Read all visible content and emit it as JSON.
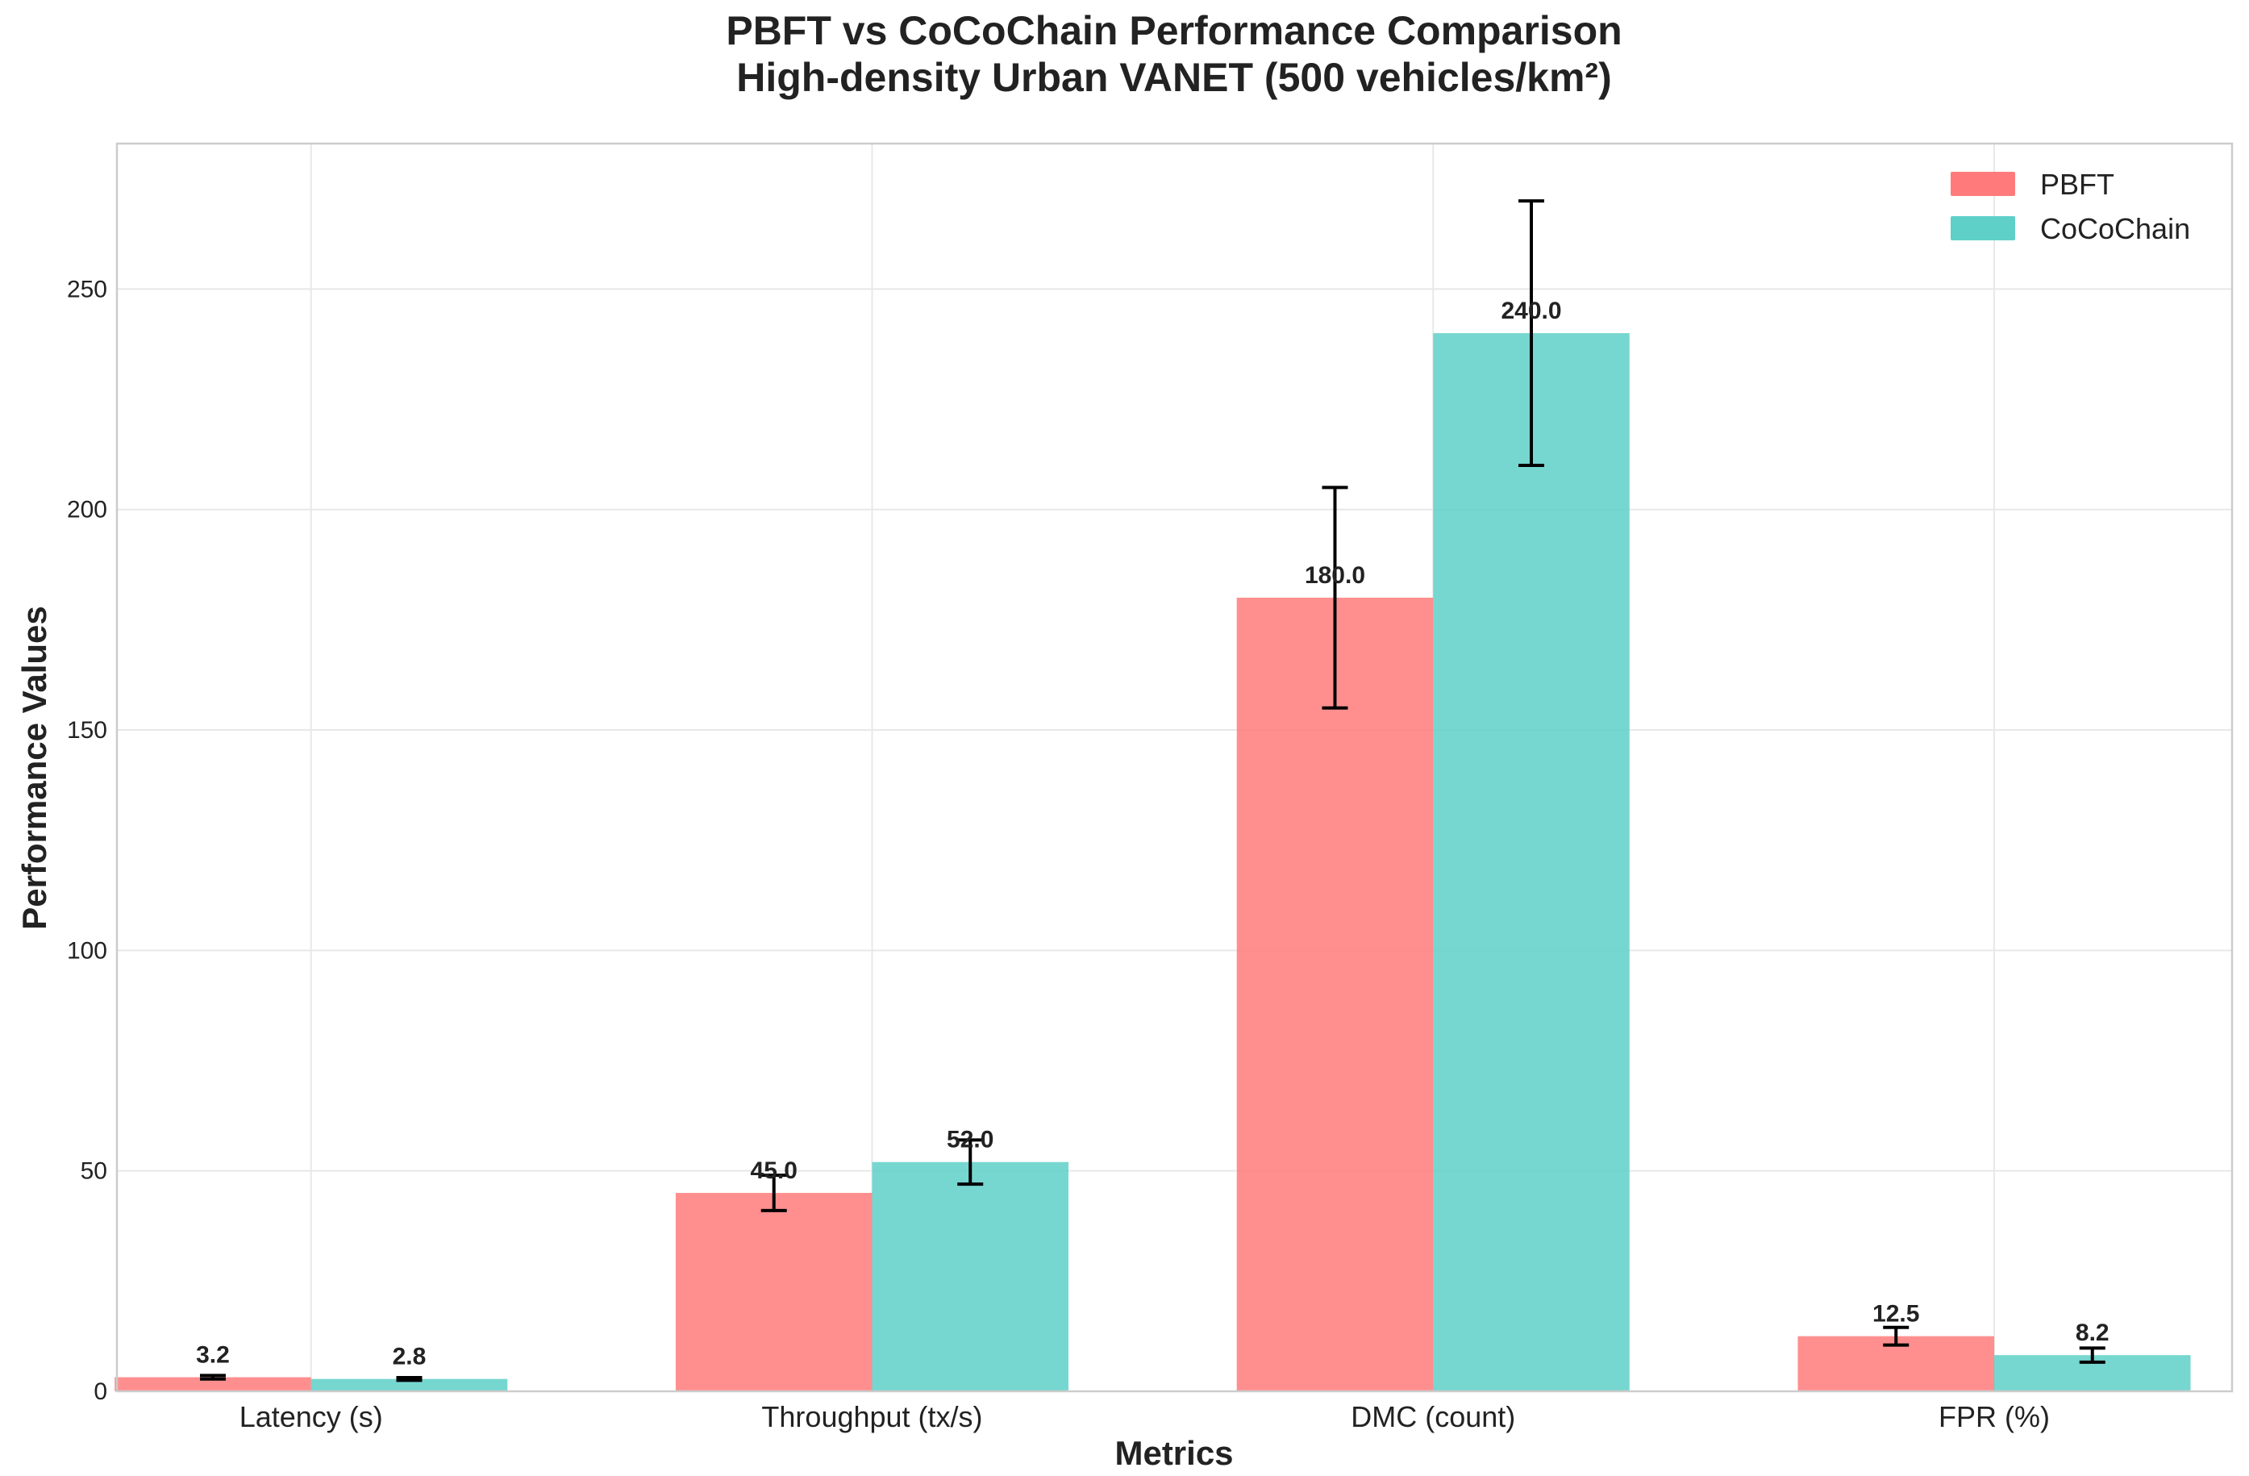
{
  "chart_data": {
    "type": "bar",
    "title": "PBFT vs CoCoChain Performance Comparison",
    "subtitle": "High-density Urban VANET (500 vehicles/km²)",
    "xlabel": "Metrics",
    "ylabel": "Performance Values",
    "categories": [
      "Latency (s)",
      "Throughput (tx/s)",
      "DMC (count)",
      "FPR (%)"
    ],
    "series": [
      {
        "name": "PBFT",
        "color": "#FF7B7B",
        "values": [
          3.2,
          45.0,
          180.0,
          12.5
        ],
        "errors": [
          0.4,
          4.0,
          25.0,
          2.0
        ],
        "value_labels": [
          "3.2",
          "45.0",
          "180.0",
          "12.5"
        ]
      },
      {
        "name": "CoCoChain",
        "color": "#5ED0C8",
        "values": [
          2.8,
          52.0,
          240.0,
          8.2
        ],
        "errors": [
          0.3,
          5.0,
          30.0,
          1.6
        ],
        "value_labels": [
          "2.8",
          "52.0",
          "240.0",
          "8.2"
        ]
      }
    ],
    "ylim": [
      0,
      283
    ],
    "yticks": [
      0,
      50,
      100,
      150,
      200,
      250
    ],
    "ytick_labels": [
      "0",
      "50",
      "100",
      "150",
      "200",
      "250"
    ],
    "grid": true,
    "legend_position": "top-right"
  }
}
